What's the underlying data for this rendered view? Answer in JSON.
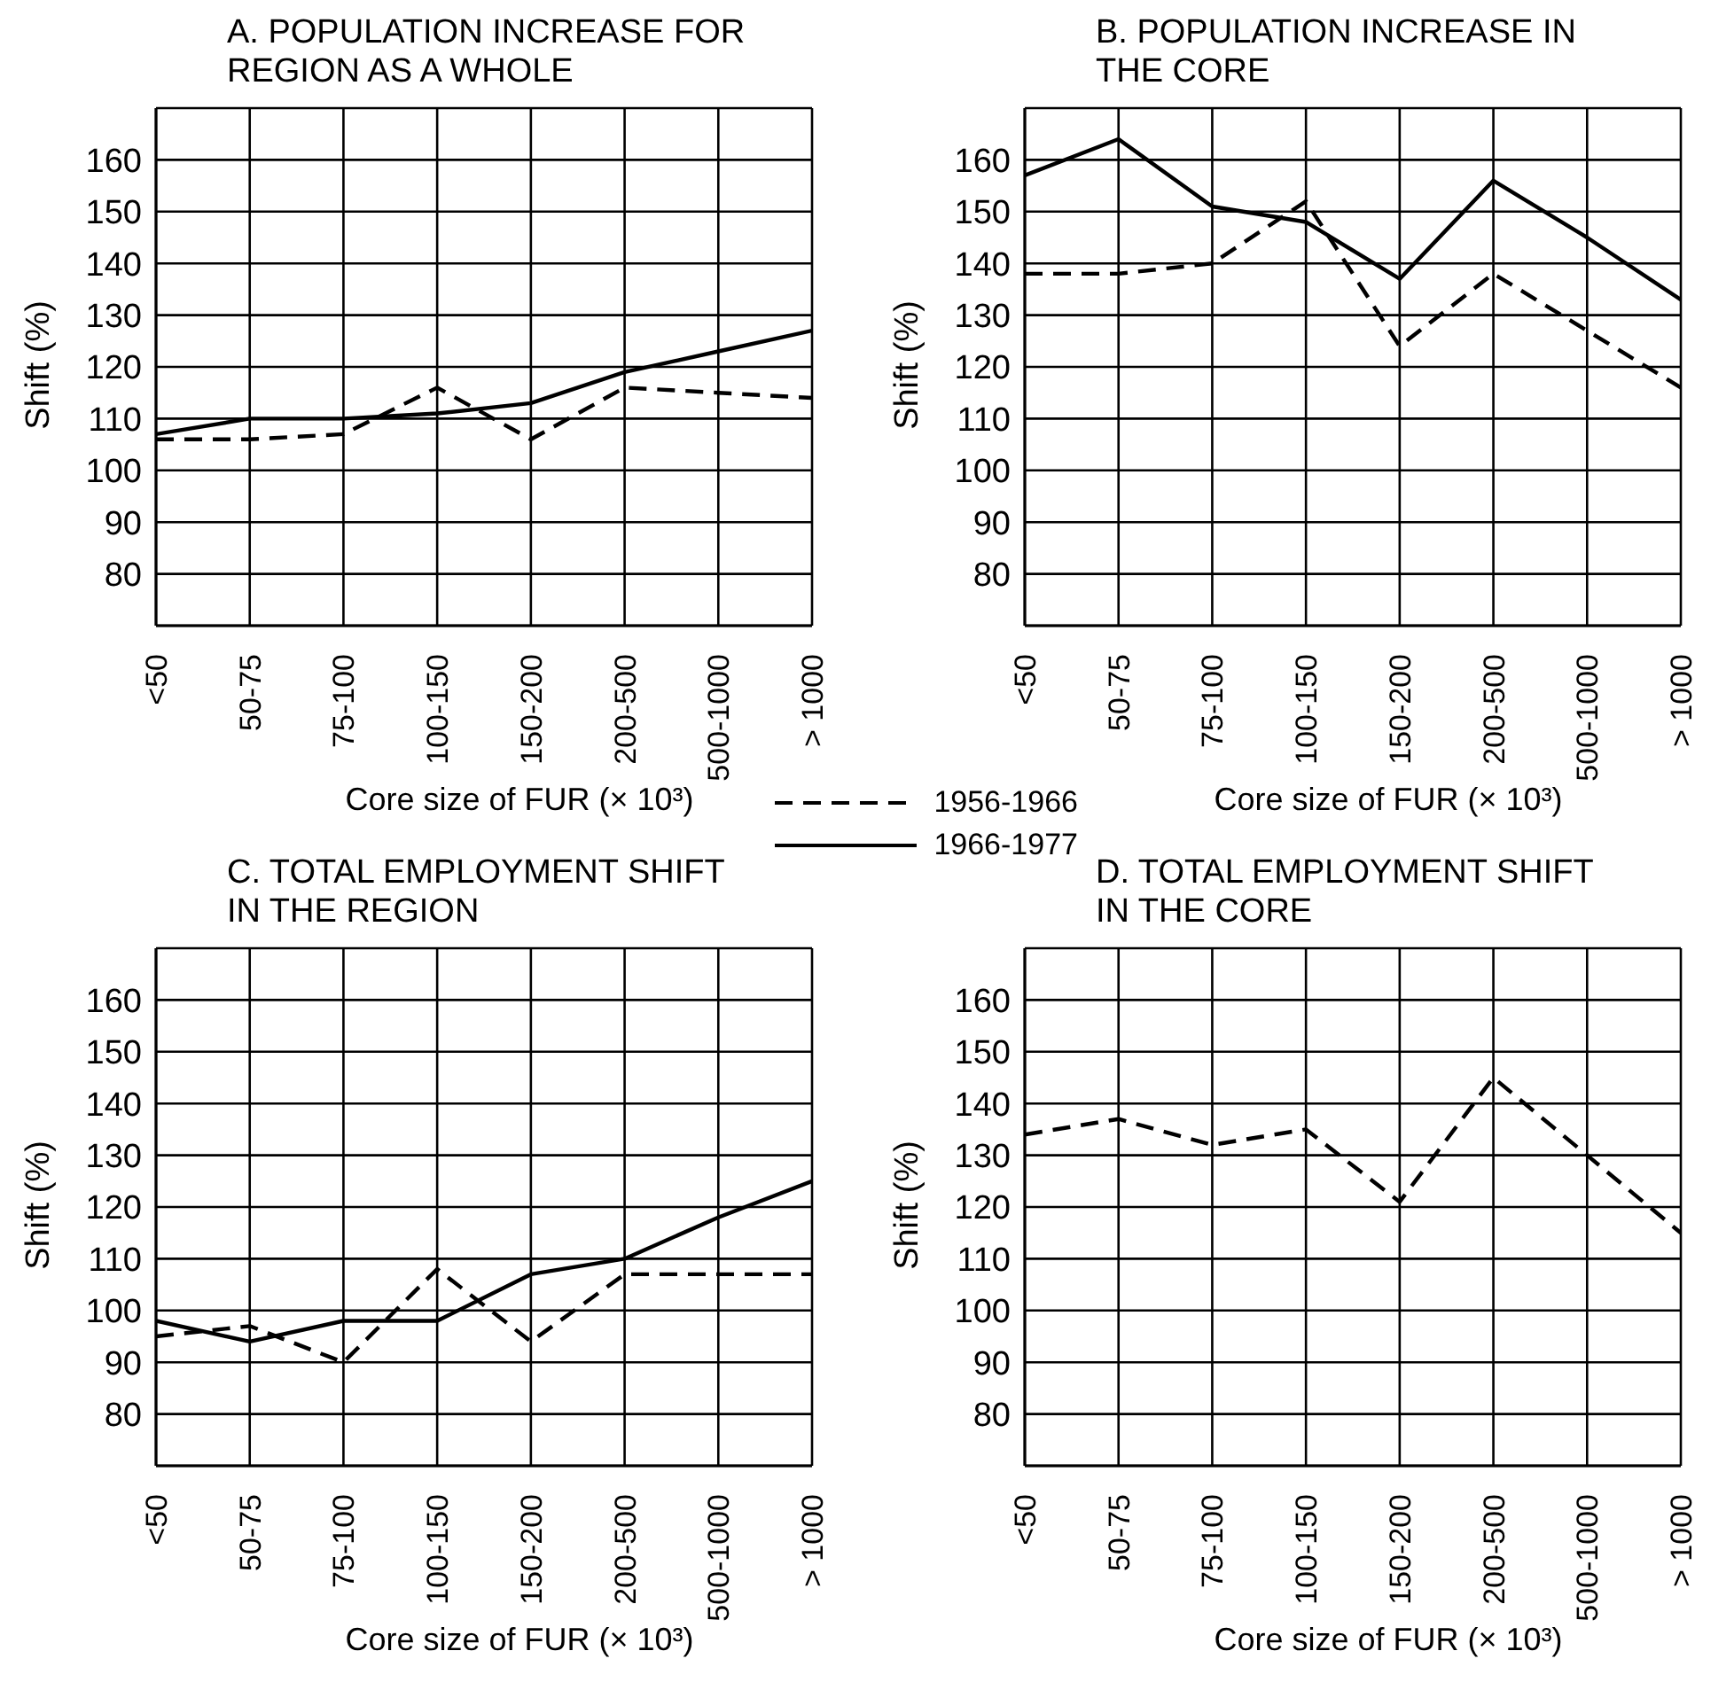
{
  "chart_data": [
    {
      "type": "line",
      "title": "A. POPULATION INCREASE FOR REGION AS A WHOLE",
      "xlabel": "Core size of FUR (× 10³)",
      "ylabel": "Shift (%)",
      "categories": [
        "<50",
        "50-75",
        "75-100",
        "100-150",
        "150-200",
        "200-500",
        "500-1000",
        "> 1000"
      ],
      "ylim": [
        70,
        170
      ],
      "yticks": [
        80,
        90,
        100,
        110,
        120,
        130,
        140,
        150,
        160
      ],
      "grid": true,
      "legend": "bottom right",
      "marker": "none",
      "series": [
        {
          "name": "1956-1966",
          "color": "#000000",
          "line_style": "dashed",
          "values": [
            106,
            106,
            107,
            116,
            106,
            116,
            115,
            114
          ]
        },
        {
          "name": "1966-1977",
          "color": "#000000",
          "line_style": "solid",
          "values": [
            107,
            110,
            110,
            111,
            113,
            119,
            123,
            127
          ]
        }
      ]
    },
    {
      "type": "line",
      "title": "B. POPULATION INCREASE IN THE CORE",
      "xlabel": "Core size of FUR (× 10³)",
      "ylabel": "Shift (%)",
      "categories": [
        "<50",
        "50-75",
        "75-100",
        "100-150",
        "150-200",
        "200-500",
        "500-1000",
        "> 1000"
      ],
      "ylim": [
        70,
        170
      ],
      "yticks": [
        80,
        90,
        100,
        110,
        120,
        130,
        140,
        150,
        160
      ],
      "grid": true,
      "marker": "none",
      "series": [
        {
          "color": "#000000",
          "line_style": "dashed",
          "values": [
            138,
            138,
            140,
            152,
            124,
            138,
            127,
            116
          ]
        },
        {
          "color": "#000000",
          "line_style": "solid",
          "values": [
            157,
            164,
            151,
            148,
            137,
            156,
            145,
            133
          ]
        }
      ]
    },
    {
      "type": "line",
      "title": "C. TOTAL EMPLOYMENT SHIFT IN THE REGION",
      "xlabel": "Core size of FUR (× 10³)",
      "ylabel": "Shift (%)",
      "categories": [
        "<50",
        "50-75",
        "75-100",
        "100-150",
        "150-200",
        "200-500",
        "500-1000",
        "> 1000"
      ],
      "ylim": [
        70,
        170
      ],
      "yticks": [
        80,
        90,
        100,
        110,
        120,
        130,
        140,
        150,
        160
      ],
      "grid": true,
      "marker": "none",
      "series": [
        {
          "color": "#000000",
          "line_style": "dashed",
          "values": [
            95,
            97,
            90,
            108,
            94,
            107,
            107,
            107
          ]
        },
        {
          "color": "#000000",
          "line_style": "solid",
          "values": [
            98,
            94,
            98,
            98,
            107,
            110,
            118,
            125
          ]
        }
      ]
    },
    {
      "type": "line",
      "title": "D. TOTAL EMPLOYMENT SHIFT IN THE CORE",
      "xlabel": "Core size of FUR (× 10³)",
      "ylabel": "Shift (%)",
      "categories": [
        "<50",
        "50-75",
        "75-100",
        "100-150",
        "150-200",
        "200-500",
        "500-1000",
        "> 1000"
      ],
      "ylim": [
        70,
        170
      ],
      "yticks": [
        80,
        90,
        100,
        110,
        120,
        130,
        140,
        150,
        160
      ],
      "grid": true,
      "marker": "none",
      "series": [
        {
          "color": "#000000",
          "line_style": "dashed",
          "values": [
            134,
            137,
            132,
            135,
            121,
            145,
            130,
            115
          ]
        }
      ]
    }
  ]
}
